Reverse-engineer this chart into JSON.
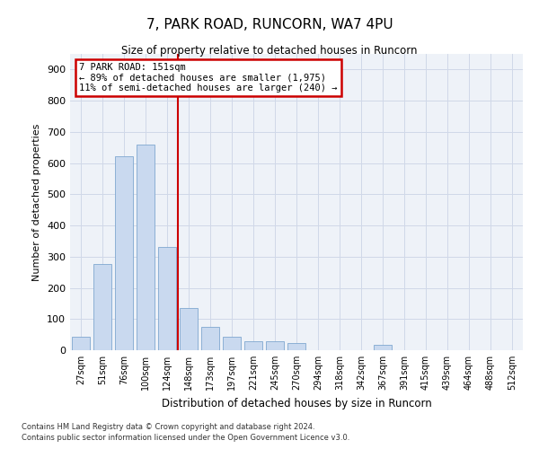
{
  "title": "7, PARK ROAD, RUNCORN, WA7 4PU",
  "subtitle": "Size of property relative to detached houses in Runcorn",
  "xlabel": "Distribution of detached houses by size in Runcorn",
  "ylabel": "Number of detached properties",
  "categories": [
    "27sqm",
    "51sqm",
    "76sqm",
    "100sqm",
    "124sqm",
    "148sqm",
    "173sqm",
    "197sqm",
    "221sqm",
    "245sqm",
    "270sqm",
    "294sqm",
    "318sqm",
    "342sqm",
    "367sqm",
    "391sqm",
    "415sqm",
    "439sqm",
    "464sqm",
    "488sqm",
    "512sqm"
  ],
  "values": [
    42,
    277,
    622,
    660,
    330,
    135,
    75,
    42,
    28,
    28,
    22,
    0,
    0,
    0,
    18,
    0,
    0,
    0,
    0,
    0,
    0
  ],
  "bar_color": "#c9d9ef",
  "bar_edge_color": "#7fa8d0",
  "annotation_title": "7 PARK ROAD: 151sqm",
  "annotation_line1": "← 89% of detached houses are smaller (1,975)",
  "annotation_line2": "11% of semi-detached houses are larger (240) →",
  "annotation_box_color": "#ffffff",
  "annotation_box_edge": "#cc0000",
  "vline_color": "#cc0000",
  "grid_color": "#d0d8e8",
  "bg_color": "#eef2f8",
  "ylim": [
    0,
    950
  ],
  "yticks": [
    0,
    100,
    200,
    300,
    400,
    500,
    600,
    700,
    800,
    900
  ],
  "footnote1": "Contains HM Land Registry data © Crown copyright and database right 2024.",
  "footnote2": "Contains public sector information licensed under the Open Government Licence v3.0."
}
